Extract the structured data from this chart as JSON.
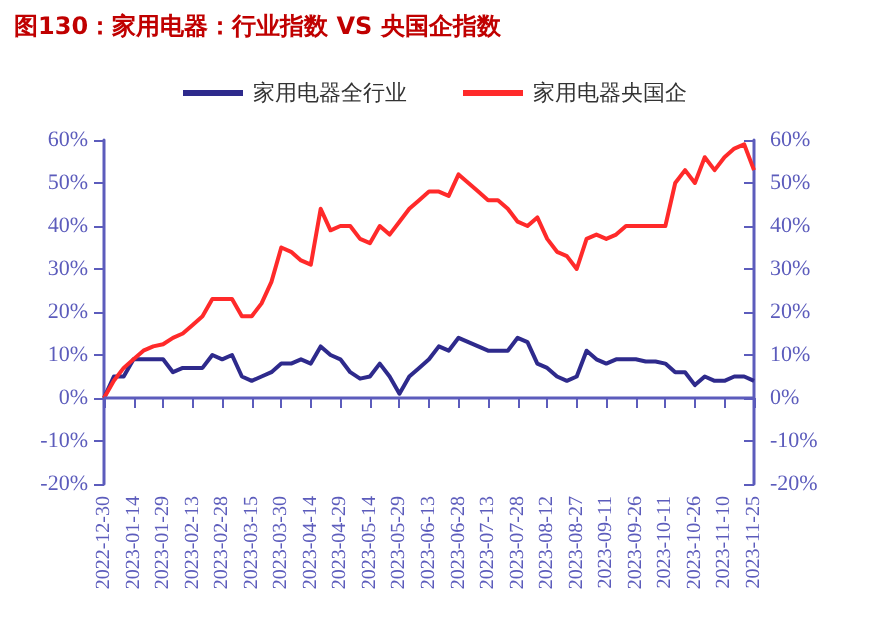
{
  "chart_data": {
    "type": "line",
    "title": "图130：家用电器：行业指数 VS 央国企指数",
    "categories": [
      "2022-12-30",
      null,
      null,
      "2023-01-14",
      null,
      null,
      "2023-01-29",
      null,
      null,
      "2023-02-13",
      null,
      null,
      "2023-02-28",
      null,
      null,
      "2023-03-15",
      null,
      null,
      "2023-03-30",
      null,
      null,
      "2023-04-14",
      null,
      null,
      "2023-04-29",
      null,
      null,
      "2023-05-14",
      null,
      null,
      "2023-05-29",
      null,
      null,
      "2023-06-13",
      null,
      null,
      "2023-06-28",
      null,
      null,
      "2023-07-13",
      null,
      null,
      "2023-07-28",
      null,
      null,
      "2023-08-12",
      null,
      null,
      "2023-08-27",
      null,
      null,
      "2023-09-11",
      null,
      null,
      "2023-09-26",
      null,
      null,
      "2023-10-11",
      null,
      null,
      "2023-10-26",
      null,
      null,
      "2023-11-10",
      null,
      null,
      "2023-11-25"
    ],
    "series": [
      {
        "name": "家用电器全行业",
        "color": "#2e2a8c",
        "values": [
          0,
          5,
          5,
          9,
          9,
          9,
          9,
          6,
          7,
          7,
          7,
          10,
          9,
          10,
          5,
          4,
          5,
          6,
          8,
          8,
          9,
          8,
          12,
          10,
          9,
          6,
          4.5,
          5,
          8,
          5,
          1,
          5,
          7,
          9,
          12,
          11,
          14,
          13,
          12,
          11,
          11,
          11,
          14,
          13,
          8,
          7,
          5,
          4,
          5,
          11,
          9,
          8,
          9,
          9,
          9,
          8.5,
          8.5,
          8,
          6,
          6,
          3,
          5,
          4,
          4,
          5,
          5,
          4
        ]
      },
      {
        "name": "家用电器央国企",
        "color": "#ff2a2a",
        "values": [
          0,
          4,
          7,
          9,
          11,
          12,
          12.5,
          14,
          15,
          17,
          19,
          23,
          23,
          23,
          19,
          19,
          22,
          27,
          35,
          34,
          32,
          31,
          44,
          39,
          40,
          40,
          37,
          36,
          40,
          38,
          41,
          44,
          46,
          48,
          48,
          47,
          52,
          50,
          48,
          46,
          46,
          44,
          41,
          40,
          42,
          37,
          34,
          33,
          30,
          37,
          38,
          37,
          38,
          40,
          40,
          40,
          40,
          40,
          50,
          53,
          50,
          56,
          53,
          56,
          58,
          59,
          53
        ]
      }
    ],
    "ylim": [
      -20,
      60
    ],
    "yticks": [
      {
        "value": -20,
        "label": "-20%"
      },
      {
        "value": -10,
        "label": "-10%"
      },
      {
        "value": 0,
        "label": "0%"
      },
      {
        "value": 10,
        "label": "10%"
      },
      {
        "value": 20,
        "label": "20%"
      },
      {
        "value": 30,
        "label": "30%"
      },
      {
        "value": 40,
        "label": "40%"
      },
      {
        "value": 50,
        "label": "50%"
      },
      {
        "value": 60,
        "label": "60%"
      }
    ],
    "y2lim": [
      -20,
      60
    ],
    "y2ticks": [
      {
        "value": -20,
        "label": "-20%"
      },
      {
        "value": -10,
        "label": "-10%"
      },
      {
        "value": 0,
        "label": "0%"
      },
      {
        "value": 10,
        "label": "10%"
      },
      {
        "value": 20,
        "label": "20%"
      },
      {
        "value": 30,
        "label": "30%"
      },
      {
        "value": 40,
        "label": "40%"
      },
      {
        "value": 50,
        "label": "50%"
      },
      {
        "value": 60,
        "label": "60%"
      }
    ],
    "ref_lines": [
      {
        "axis": "y",
        "value": 0,
        "color": "#5c5cbc",
        "line_style": "solid"
      }
    ],
    "legend": "top",
    "grid": false,
    "line_style": "solid"
  }
}
